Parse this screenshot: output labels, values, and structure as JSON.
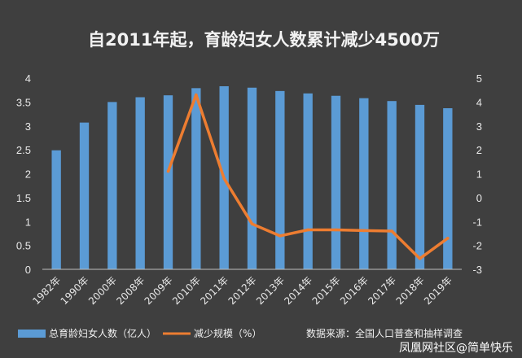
{
  "chart_data": {
    "type": "bar+line",
    "title": "自2011年起，育龄妇女人数累计减少4500万",
    "categories": [
      "1982年",
      "1990年",
      "2000年",
      "2008年",
      "2009年",
      "2010年",
      "2011年",
      "2012年",
      "2013年",
      "2014年",
      "2015年",
      "2016年",
      "2017年",
      "2018年",
      "2019年"
    ],
    "series": [
      {
        "name": "总育龄妇女人数（亿人）",
        "type": "bar",
        "axis": "left",
        "color": "#5b9bd5",
        "values": [
          2.49,
          3.07,
          3.5,
          3.6,
          3.64,
          3.79,
          3.83,
          3.8,
          3.73,
          3.68,
          3.63,
          3.58,
          3.52,
          3.44,
          3.37
        ]
      },
      {
        "name": "减少规模（%）",
        "type": "line",
        "axis": "right",
        "color": "#ed7d31",
        "values": [
          null,
          null,
          null,
          null,
          1.1,
          4.3,
          0.8,
          -1.1,
          -1.6,
          -1.35,
          -1.35,
          -1.38,
          -1.4,
          -2.55,
          -1.7
        ]
      }
    ],
    "y_left": {
      "min": 0,
      "max": 4,
      "ticks": [
        "0",
        "0.5",
        "1",
        "1.5",
        "2",
        "2.5",
        "3",
        "3.5",
        "4"
      ]
    },
    "y_right": {
      "min": -3,
      "max": 5,
      "ticks": [
        "-3",
        "-2",
        "-1",
        "0",
        "1",
        "2",
        "3",
        "4",
        "5"
      ]
    },
    "grid": false,
    "legend_position": "bottom-left",
    "source": "数据来源：全国人口普查和抽样调查",
    "watermark": "凤凰网社区@简单快乐"
  }
}
